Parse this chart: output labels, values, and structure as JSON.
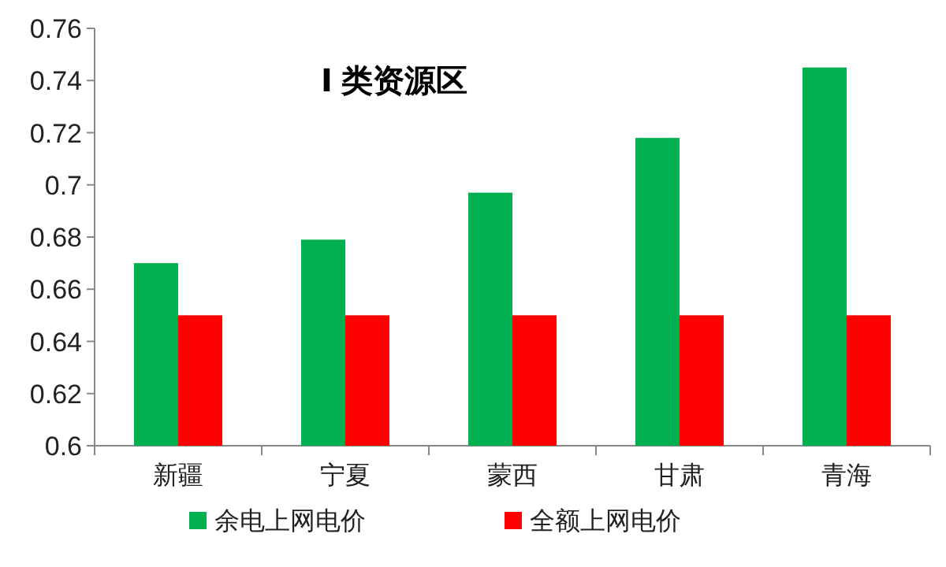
{
  "chart_data": {
    "type": "bar",
    "title": "Ⅰ 类资源区",
    "categories": [
      "新疆",
      "宁夏",
      "蒙西",
      "甘肃",
      "青海"
    ],
    "series": [
      {
        "name": "余电上网电价",
        "color": "#00b050",
        "values": [
          0.67,
          0.679,
          0.697,
          0.718,
          0.745
        ]
      },
      {
        "name": "全额上网电价",
        "color": "#ff0000",
        "values": [
          0.65,
          0.65,
          0.65,
          0.65,
          0.65
        ]
      }
    ],
    "ylim": [
      0.6,
      0.76
    ],
    "yticks": [
      0.6,
      0.62,
      0.64,
      0.66,
      0.68,
      0.7,
      0.72,
      0.74,
      0.76
    ],
    "legend": "bottom"
  }
}
